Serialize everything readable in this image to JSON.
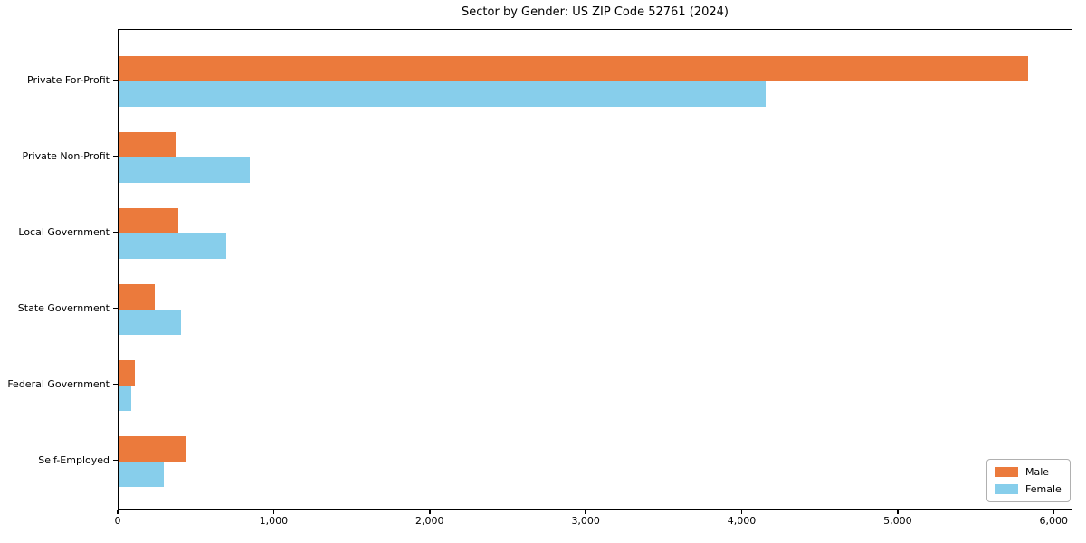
{
  "title": "Sector by Gender: US ZIP Code 52761 (2024)",
  "colors": {
    "male": "#EB7A3C",
    "female": "#87CEEB",
    "axis": "#000000",
    "legend_border": "#b0b0b0",
    "background": "#ffffff"
  },
  "chart_data": {
    "type": "bar",
    "orientation": "horizontal",
    "title": "Sector by Gender: US ZIP Code 52761 (2024)",
    "categories": [
      "Private For-Profit",
      "Private Non-Profit",
      "Local Government",
      "State Government",
      "Federal Government",
      "Self-Employed"
    ],
    "series": [
      {
        "name": "Male",
        "color": "#EB7A3C",
        "values": [
          5830,
          370,
          380,
          230,
          105,
          435
        ]
      },
      {
        "name": "Female",
        "color": "#87CEEB",
        "values": [
          4150,
          840,
          690,
          400,
          80,
          290
        ]
      }
    ],
    "xlabel": "",
    "ylabel": "",
    "xlim": [
      0,
      6120
    ],
    "x_ticks": [
      0,
      1000,
      2000,
      3000,
      4000,
      5000,
      6000
    ],
    "x_tick_labels": [
      "0",
      "1,000",
      "2,000",
      "3,000",
      "4,000",
      "5,000",
      "6,000"
    ],
    "grid": false,
    "legend": {
      "position": "lower right",
      "entries": [
        "Male",
        "Female"
      ]
    }
  }
}
